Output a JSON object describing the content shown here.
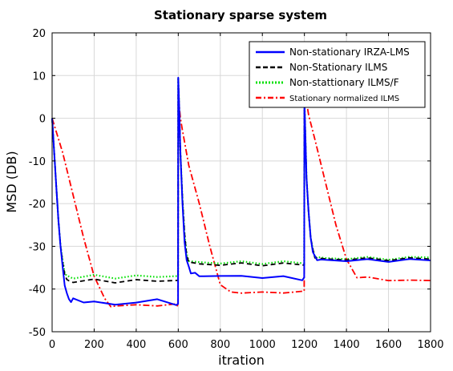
{
  "chart_data": {
    "type": "line",
    "title": "Stationary sparse system",
    "xlabel": "itration",
    "ylabel": "MSD (DB)",
    "xlim": [
      0,
      1800
    ],
    "ylim": [
      -50,
      20
    ],
    "xticks": [
      "0",
      "200",
      "400",
      "600",
      "800",
      "1000",
      "1200",
      "1400",
      "1600",
      "1800"
    ],
    "yticks": [
      "20",
      "10",
      "0",
      "-10",
      "-20",
      "-30",
      "-40",
      "-50"
    ],
    "grid": true,
    "legend_position": "top-right",
    "series": [
      {
        "name": "Non-stationary IRZA-LMS",
        "color": "#0000ff",
        "style": "solid",
        "x": [
          0,
          10,
          20,
          30,
          40,
          50,
          60,
          70,
          80,
          90,
          100,
          150,
          200,
          300,
          400,
          500,
          590,
          599,
          600,
          605,
          610,
          620,
          630,
          640,
          650,
          660,
          680,
          700,
          800,
          900,
          1000,
          1100,
          1190,
          1199,
          1200,
          1205,
          1210,
          1220,
          1230,
          1240,
          1250,
          1260,
          1280,
          1300,
          1400,
          1500,
          1600,
          1700,
          1800
        ],
        "y": [
          0,
          -8,
          -16,
          -24,
          -30,
          -35,
          -39,
          -41,
          -42.5,
          -42.8,
          -42.5,
          -42.8,
          -43.2,
          -43.5,
          -43.2,
          -42.5,
          -43.5,
          -43.8,
          9.5,
          2,
          -8,
          -20,
          -29,
          -33,
          -35,
          -36,
          -36.5,
          -36.8,
          -37,
          -37,
          -37.2,
          -37.3,
          -37.6,
          -37.6,
          4,
          -5,
          -14,
          -22,
          -28,
          -31,
          -32.6,
          -33,
          -33.2,
          -33.2,
          -33.3,
          -33.3,
          -33.3,
          -33.3,
          -33.3
        ]
      },
      {
        "name": "Non-Stationary ILMS",
        "color": "#000000",
        "style": "dashed",
        "x": [
          0,
          10,
          20,
          30,
          40,
          50,
          60,
          70,
          80,
          100,
          200,
          300,
          400,
          500,
          599,
          600,
          605,
          610,
          620,
          630,
          640,
          650,
          700,
          800,
          900,
          1000,
          1100,
          1199,
          1200,
          1205,
          1210,
          1220,
          1230,
          1240,
          1250,
          1260,
          1300,
          1400,
          1500,
          1600,
          1700,
          1800
        ],
        "y": [
          0,
          -8,
          -16,
          -24,
          -30,
          -34,
          -36.5,
          -37.8,
          -38.2,
          -38.2,
          -38,
          -38.2,
          -38.1,
          -38,
          -38,
          9.5,
          2,
          -8,
          -19,
          -27,
          -32,
          -33.7,
          -34.2,
          -34.2,
          -34.2,
          -34.2,
          -34.2,
          -34.2,
          4,
          -5,
          -14,
          -22,
          -28,
          -31,
          -32.5,
          -32.8,
          -33,
          -33,
          -33,
          -33,
          -33,
          -33
        ]
      },
      {
        "name": "Non-stattionary ILMS/F",
        "color": "#00e000",
        "style": "dotted",
        "x": [
          0,
          10,
          20,
          30,
          40,
          50,
          60,
          70,
          80,
          100,
          200,
          300,
          400,
          500,
          599,
          600,
          605,
          610,
          620,
          630,
          640,
          650,
          700,
          800,
          900,
          1000,
          1100,
          1199,
          1200,
          1205,
          1210,
          1220,
          1230,
          1240,
          1250,
          1260,
          1300,
          1400,
          1500,
          1600,
          1700,
          1800
        ],
        "y": [
          0,
          -8,
          -16,
          -24,
          -29.5,
          -33.5,
          -36,
          -37,
          -37.2,
          -37.3,
          -37,
          -37.2,
          -37.1,
          -37,
          -37,
          9.5,
          2,
          -8,
          -19,
          -27,
          -31.5,
          -33.5,
          -33.8,
          -33.8,
          -33.8,
          -33.8,
          -33.8,
          -33.8,
          4,
          -5,
          -14,
          -22,
          -28,
          -31,
          -32.3,
          -32.6,
          -32.8,
          -32.8,
          -32.8,
          -32.8,
          -32.8,
          -32.6
        ]
      },
      {
        "name": "Stationary normalized ILMS",
        "color": "#ff0000",
        "style": "dashdot",
        "x": [
          0,
          50,
          100,
          150,
          200,
          250,
          280,
          300,
          400,
          500,
          590,
          599,
          600,
          605,
          610,
          620,
          650,
          700,
          750,
          800,
          850,
          900,
          1000,
          1100,
          1199,
          1200,
          1210,
          1220,
          1250,
          1300,
          1350,
          1400,
          1450,
          1500,
          1600,
          1700,
          1800
        ],
        "y": [
          0,
          -8,
          -18,
          -28,
          -37,
          -42.5,
          -44,
          -44,
          -43.8,
          -43.7,
          -43.8,
          -43.8,
          6,
          3,
          0,
          -3,
          -11,
          -20,
          -30,
          -39,
          -40.5,
          -41,
          -40.8,
          -40.7,
          -40.8,
          3,
          3.5,
          1,
          -5,
          -15,
          -25,
          -33,
          -37,
          -37.5,
          -37.8,
          -38,
          -38
        ]
      }
    ]
  }
}
